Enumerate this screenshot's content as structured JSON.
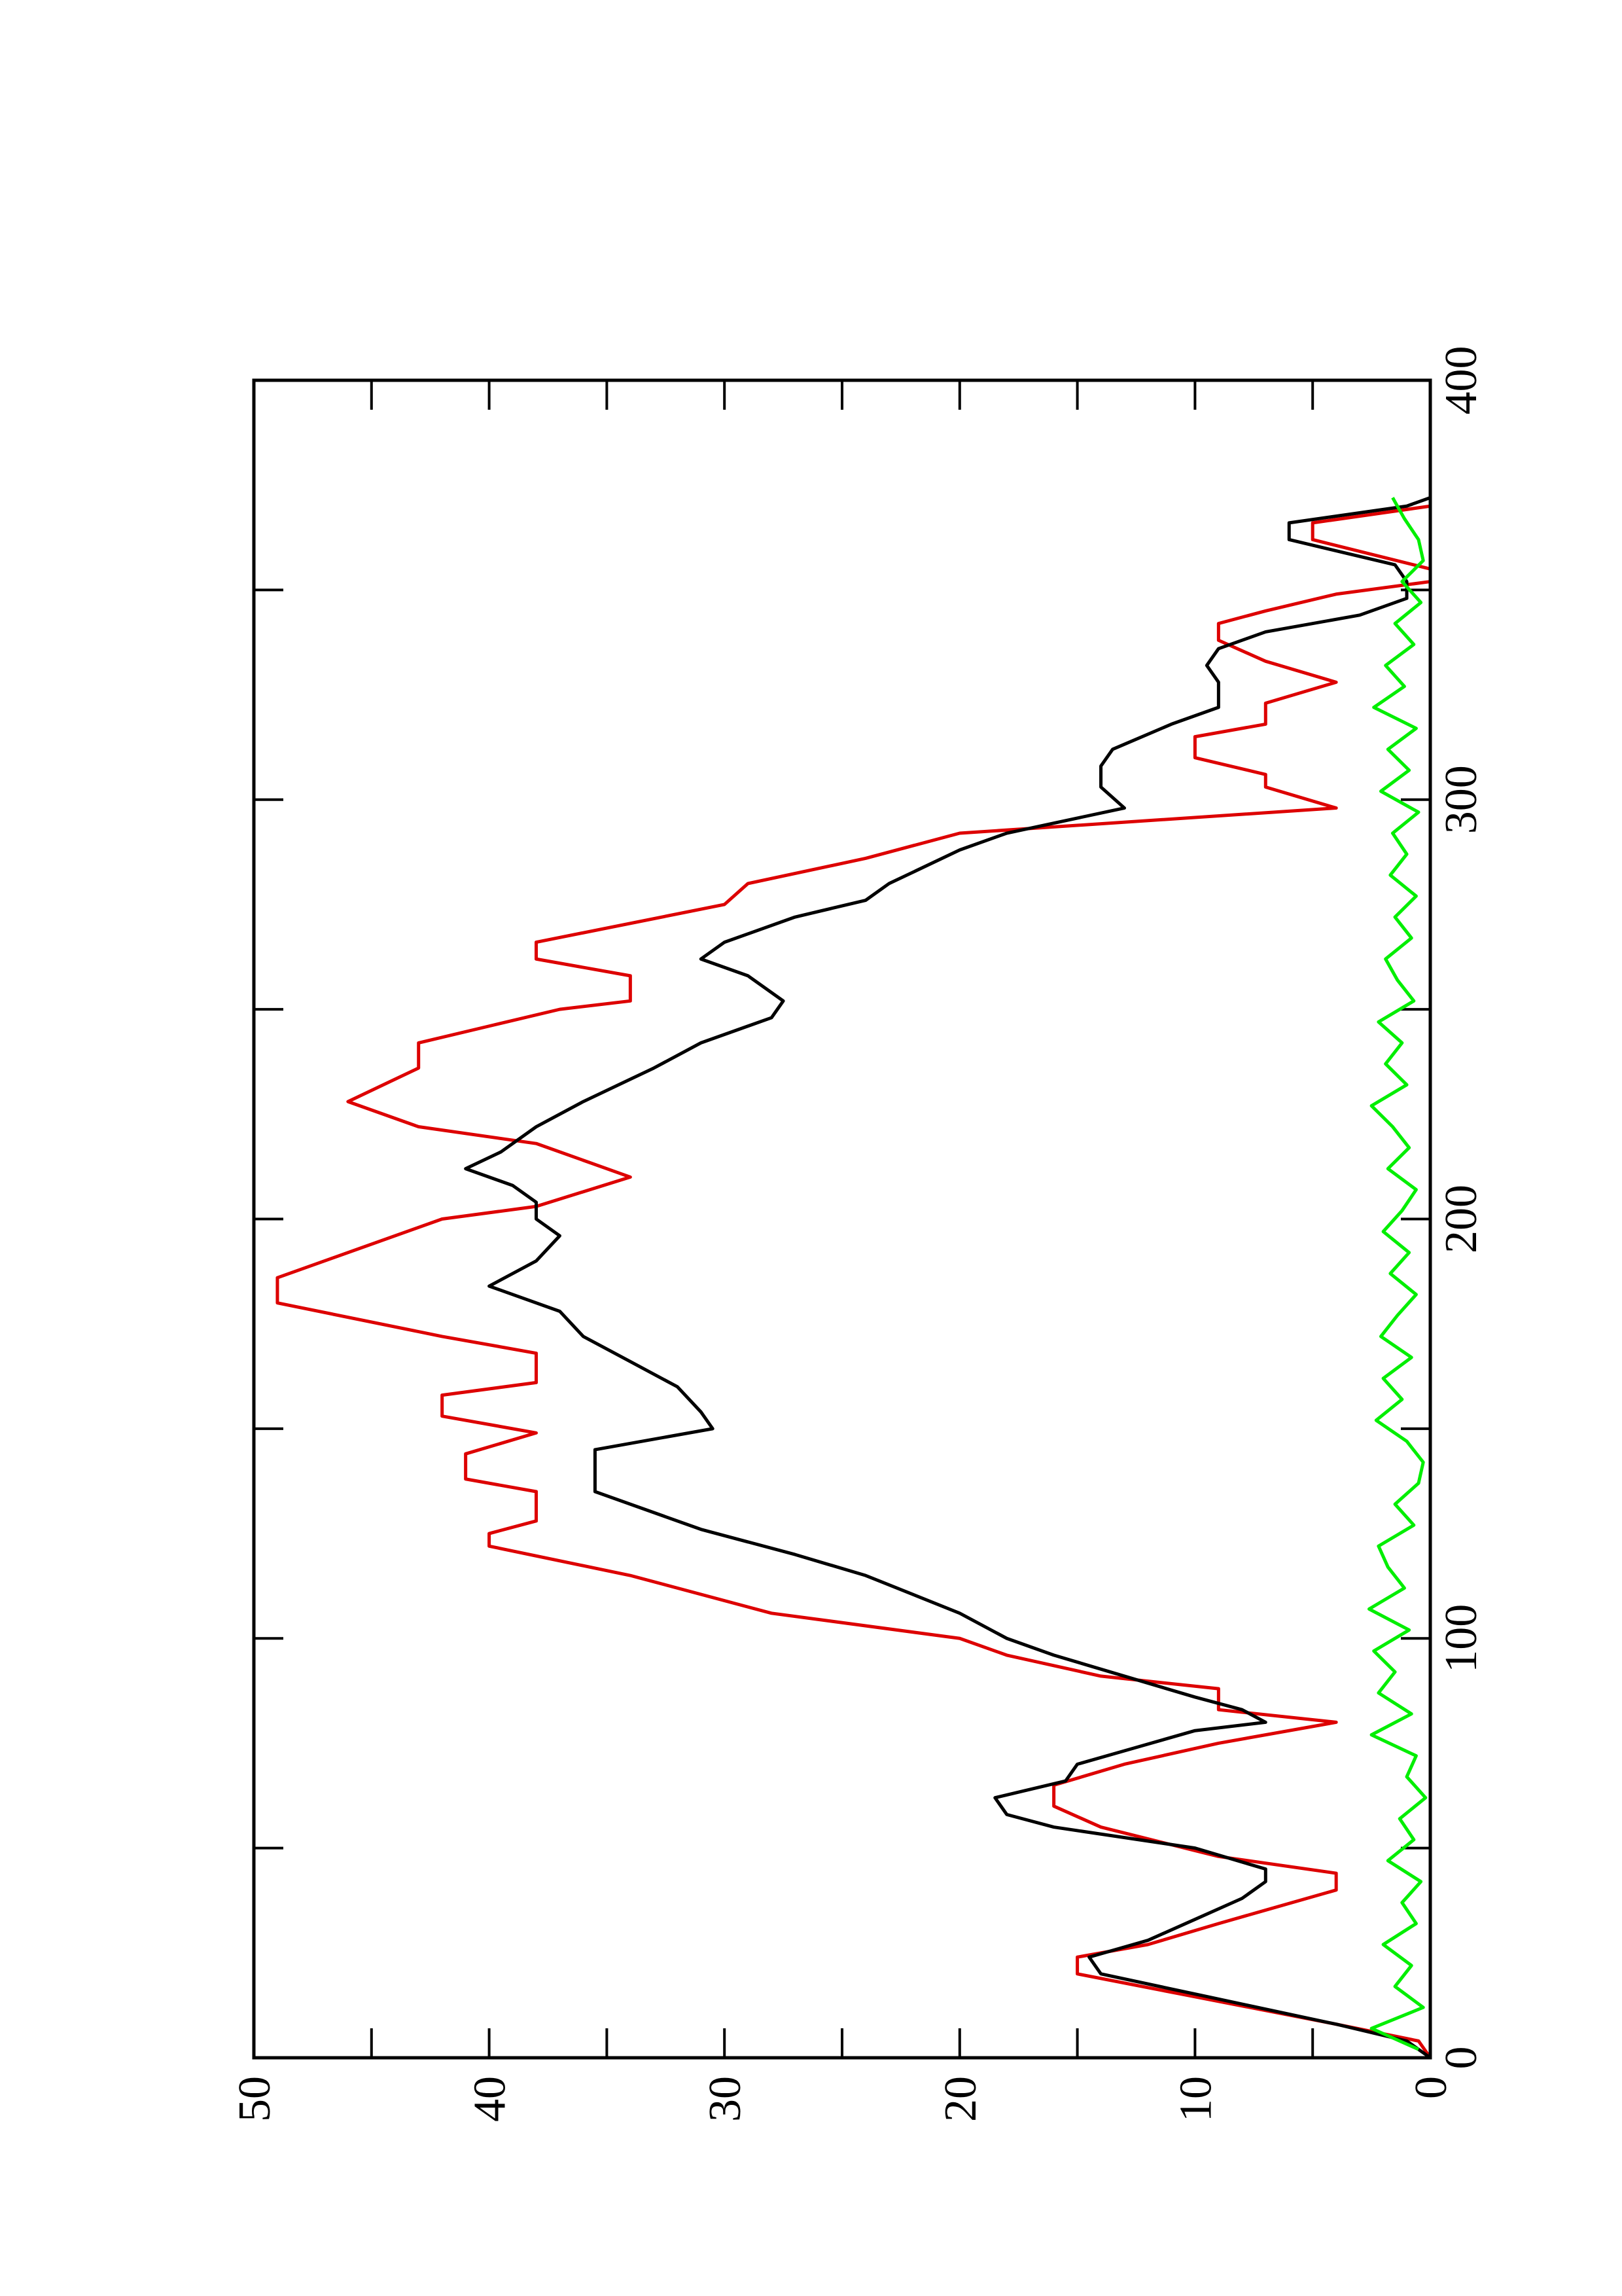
{
  "chart_data": {
    "type": "line",
    "xlim": [
      0,
      400
    ],
    "xticks": [
      0,
      100,
      200,
      300,
      400
    ],
    "ylim": [
      0,
      50
    ],
    "yticks": [
      0,
      10,
      20,
      30,
      40,
      50
    ],
    "series": [
      {
        "color": "#dd0000",
        "x": [
          0,
          4,
          8,
          20,
          24,
          27,
          32,
          40,
          44,
          48,
          55,
          60,
          65,
          70,
          75,
          80,
          83,
          88,
          91,
          96,
          100,
          106,
          115,
          122,
          125,
          128,
          135,
          138,
          144,
          149,
          153,
          158,
          161,
          168,
          172,
          180,
          186,
          200,
          203,
          210,
          218,
          222,
          228,
          236,
          242,
          246,
          250,
          252,
          258,
          262,
          266,
          275,
          280,
          286,
          292,
          298,
          303,
          306,
          310,
          315,
          318,
          323,
          328,
          333,
          338,
          342,
          345,
          349,
          352,
          355,
          362,
          366,
          370
        ],
        "values": [
          0,
          0.5,
          4,
          15,
          15,
          12,
          9,
          4,
          4,
          9,
          14,
          16,
          16,
          13,
          9,
          4,
          9,
          9,
          14,
          18,
          20,
          28,
          34,
          40,
          40,
          38,
          38,
          41,
          41,
          38,
          42,
          42,
          38,
          38,
          42,
          49,
          49,
          42,
          38,
          34,
          38,
          43,
          46,
          43,
          43,
          40,
          37,
          34,
          34,
          38,
          38,
          30,
          29,
          24,
          20,
          4,
          7,
          7,
          10,
          10,
          7,
          7,
          4,
          7,
          9,
          9,
          7,
          4,
          0,
          0,
          5,
          5,
          0
        ]
      },
      {
        "color": "#000000",
        "x": [
          0,
          4,
          8,
          20,
          24,
          28,
          33,
          38,
          42,
          45,
          50,
          55,
          58,
          62,
          66,
          70,
          74,
          78,
          80,
          83,
          86,
          91,
          96,
          100,
          106,
          115,
          120,
          126,
          135,
          145,
          150,
          154,
          160,
          166,
          172,
          178,
          184,
          190,
          196,
          200,
          204,
          208,
          212,
          216,
          222,
          228,
          236,
          242,
          248,
          252,
          258,
          262,
          266,
          272,
          276,
          280,
          288,
          292,
          298,
          303,
          308,
          312,
          318,
          322,
          328,
          332,
          336,
          340,
          344,
          348,
          352,
          356,
          362,
          366,
          370,
          372
        ],
        "values": [
          0,
          1,
          4,
          14,
          14.5,
          12,
          10,
          8,
          7,
          7,
          10,
          16,
          18,
          18.5,
          15.5,
          15,
          12.5,
          10,
          7,
          8,
          10,
          13,
          16,
          18,
          20,
          24,
          27,
          31,
          35.5,
          35.5,
          30.5,
          31,
          32,
          34,
          36,
          37,
          40,
          38,
          37,
          38,
          38,
          39,
          41,
          39.5,
          38,
          36,
          33,
          31,
          28,
          27.5,
          29,
          31,
          30,
          27,
          24,
          23,
          20,
          18,
          13,
          14,
          14,
          13.5,
          11,
          9,
          9,
          9.5,
          9,
          7,
          3,
          1,
          1,
          1.5,
          6,
          6,
          1,
          0
        ]
      },
      {
        "color": "#00ee00",
        "x": [
          2,
          7,
          12,
          17,
          22,
          27,
          32,
          37,
          42,
          47,
          52,
          57,
          62,
          67,
          72,
          77,
          82,
          87,
          92,
          97,
          102,
          107,
          112,
          117,
          122,
          127,
          132,
          137,
          142,
          147,
          152,
          157,
          162,
          167,
          172,
          177,
          182,
          187,
          192,
          197,
          202,
          207,
          212,
          217,
          222,
          227,
          232,
          237,
          242,
          247,
          252,
          257,
          262,
          267,
          272,
          277,
          282,
          287,
          292,
          297,
          302,
          307,
          312,
          317,
          322,
          327,
          332,
          337,
          342,
          347,
          352,
          357,
          362,
          367,
          372
        ],
        "values": [
          0.5,
          2.5,
          0.3,
          1.5,
          0.8,
          2,
          0.6,
          1.2,
          0.4,
          1.8,
          0.7,
          1.3,
          0.2,
          1,
          0.6,
          2.5,
          0.8,
          2.2,
          1.5,
          2.4,
          0.9,
          2.6,
          1.1,
          1.8,
          2.2,
          0.7,
          1.5,
          0.5,
          0.3,
          1,
          2.3,
          1.2,
          2,
          0.8,
          2.1,
          1.4,
          0.6,
          1.7,
          0.9,
          2,
          1.2,
          0.6,
          1.8,
          0.9,
          1.6,
          2.5,
          1,
          1.9,
          1.2,
          2.2,
          0.7,
          1.4,
          1.9,
          0.8,
          1.5,
          0.6,
          1.7,
          1,
          1.6,
          0.5,
          2.1,
          0.9,
          1.8,
          0.6,
          2.4,
          1.1,
          1.9,
          0.7,
          1.5,
          0.4,
          1.2,
          0.3,
          0.5,
          1.1,
          1.6
        ]
      }
    ]
  }
}
